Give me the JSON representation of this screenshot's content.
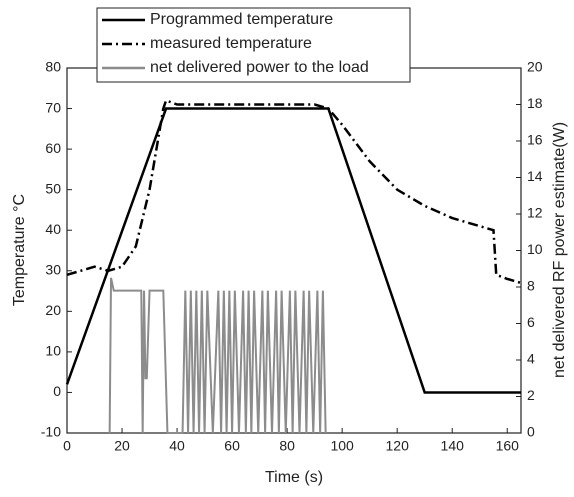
{
  "chart_data": {
    "type": "line",
    "xlabel": "Time (s)",
    "ylabel": "Temperature °C",
    "y2label": "net delivered RF power estimate(W)",
    "xlim": [
      0,
      165
    ],
    "xticks": [
      0,
      20,
      40,
      60,
      80,
      100,
      120,
      140,
      160
    ],
    "ylim": [
      -10,
      80
    ],
    "yticks": [
      -10,
      0,
      10,
      20,
      30,
      40,
      50,
      60,
      70,
      80
    ],
    "y2lim": [
      0,
      20
    ],
    "y2ticks": [
      0,
      2,
      4,
      6,
      8,
      10,
      12,
      14,
      16,
      18,
      20
    ],
    "series": [
      {
        "name": "Programmed temperature",
        "color": "#000000",
        "style": "solid",
        "x": [
          0,
          36,
          95,
          130,
          165
        ],
        "values": [
          2,
          70,
          70,
          0,
          0
        ]
      },
      {
        "name": "measured temperature",
        "color": "#000000",
        "style": "dashdot",
        "x": [
          0,
          5,
          10,
          15,
          20,
          25,
          30,
          35,
          36,
          40,
          50,
          60,
          70,
          80,
          90,
          95,
          100,
          110,
          120,
          130,
          140,
          150,
          155,
          156,
          160,
          165
        ],
        "values": [
          29,
          30,
          31,
          30,
          31,
          36,
          50,
          70,
          72,
          71,
          71,
          71,
          71,
          71,
          71,
          70,
          66,
          57,
          50,
          46,
          43,
          41,
          40,
          29,
          28,
          27
        ]
      },
      {
        "name": "net delivered power to the load",
        "color": "#8c8c8c",
        "style": "solid",
        "axis": "y2",
        "x": [
          15.5,
          16,
          17,
          27,
          27.5,
          28,
          28.5,
          29,
          30,
          35,
          36.5,
          42,
          43,
          44,
          45,
          46,
          47,
          48,
          49,
          50,
          51,
          53,
          55,
          56,
          57,
          58,
          59,
          60,
          61,
          62.5,
          64,
          65,
          66,
          67,
          68,
          69.5,
          71,
          72,
          73,
          74.5,
          76,
          77,
          78,
          79.5,
          81,
          82,
          83,
          84.5,
          86,
          87,
          88,
          89.5,
          91,
          92,
          93,
          94
        ],
        "values": [
          0,
          8.5,
          7.8,
          7.8,
          0,
          7.8,
          3,
          3,
          7.8,
          7.8,
          0,
          0,
          7.8,
          0,
          7.8,
          0,
          7.8,
          0,
          7.8,
          0,
          7.8,
          0,
          7.8,
          0,
          7.8,
          0,
          7.8,
          0,
          7.8,
          0,
          7.8,
          0,
          7.8,
          0,
          7.8,
          0,
          7.8,
          0,
          7.8,
          0,
          7.8,
          0,
          7.8,
          0,
          7.8,
          0,
          7.8,
          0,
          7.8,
          0,
          7.8,
          0,
          7.8,
          0,
          7.8,
          0
        ]
      }
    ]
  }
}
